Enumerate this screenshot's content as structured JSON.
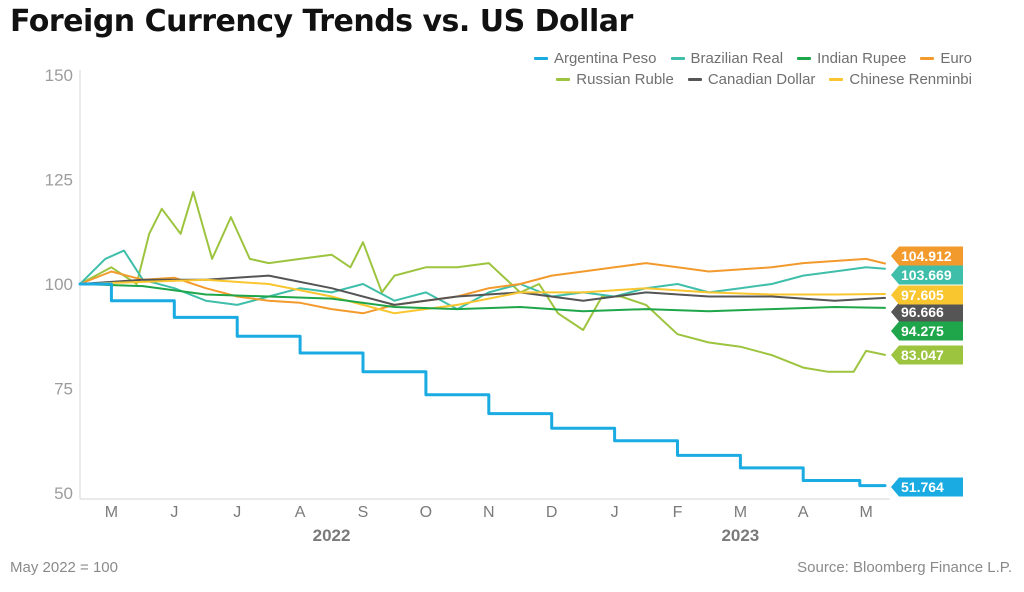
{
  "chart_data": {
    "type": "line",
    "title": "Foreign Currency Trends vs. US Dollar",
    "note": "May 2022 = 100",
    "source": "Source: Bloomberg Finance L.P.",
    "ylim": [
      50,
      150
    ],
    "yticks": [
      50,
      75,
      100,
      125,
      150
    ],
    "x_range": [
      0,
      12.8
    ],
    "month_ticks": [
      {
        "label": "M",
        "x": 0.5
      },
      {
        "label": "J",
        "x": 1.5
      },
      {
        "label": "J",
        "x": 2.5
      },
      {
        "label": "A",
        "x": 3.5
      },
      {
        "label": "S",
        "x": 4.5
      },
      {
        "label": "O",
        "x": 5.5
      },
      {
        "label": "N",
        "x": 6.5
      },
      {
        "label": "D",
        "x": 7.5
      },
      {
        "label": "J",
        "x": 8.5
      },
      {
        "label": "F",
        "x": 9.5
      },
      {
        "label": "M",
        "x": 10.5
      },
      {
        "label": "A",
        "x": 11.5
      },
      {
        "label": "M",
        "x": 12.5
      }
    ],
    "years": [
      {
        "label": "2022",
        "x": 4.0
      },
      {
        "label": "2023",
        "x": 10.5
      }
    ],
    "series": [
      {
        "name": "Argentina Peso",
        "color": "#19ABE2",
        "end_value": "51.764",
        "x": [
          0,
          1,
          2,
          3,
          4,
          5,
          6,
          7,
          8,
          9,
          10,
          11,
          12,
          12.8
        ],
        "values": [
          100,
          96,
          92,
          87.5,
          83.5,
          79,
          73.5,
          69,
          65.5,
          62.5,
          59,
          56,
          53,
          51.764
        ]
      },
      {
        "name": "Brazilian Real",
        "color": "#3FBFAA",
        "end_value": "103.669",
        "x": [
          0,
          0.4,
          0.7,
          1,
          1.5,
          2,
          2.5,
          3,
          3.5,
          4,
          4.5,
          5,
          5.5,
          6,
          6.5,
          7,
          7.5,
          8,
          8.5,
          9,
          9.5,
          10,
          10.5,
          11,
          11.5,
          12,
          12.5,
          12.8
        ],
        "values": [
          100,
          106,
          108,
          101,
          99,
          96,
          95,
          97,
          99,
          98,
          100,
          96,
          98,
          94,
          98,
          100,
          97,
          98,
          97,
          99,
          100,
          98,
          99,
          100,
          102,
          103,
          104,
          103.669
        ]
      },
      {
        "name": "Indian Rupee",
        "color": "#1FA64A",
        "end_value": "94.275",
        "x": [
          0,
          1,
          2,
          3,
          4,
          5,
          6,
          7,
          8,
          9,
          10,
          11,
          12,
          12.8
        ],
        "values": [
          100,
          99.5,
          97.5,
          97,
          96.5,
          94.5,
          94,
          94.5,
          93.5,
          94,
          93.5,
          94,
          94.5,
          94.275
        ]
      },
      {
        "name": "Euro",
        "color": "#F39A2D",
        "end_value": "104.912",
        "x": [
          0,
          0.5,
          1,
          1.5,
          2,
          2.5,
          3,
          3.5,
          4,
          4.5,
          5,
          5.5,
          6,
          6.5,
          7,
          7.5,
          8,
          8.5,
          9,
          9.5,
          10,
          10.5,
          11,
          11.5,
          12,
          12.5,
          12.8
        ],
        "values": [
          100,
          103,
          101,
          101.5,
          99,
          97,
          96,
          95.5,
          94,
          93,
          95,
          96,
          97,
          99,
          100,
          102,
          103,
          104,
          105,
          104,
          103,
          103.5,
          104,
          105,
          105.5,
          106,
          104.912
        ]
      },
      {
        "name": "Russian Ruble",
        "color": "#9CC43F",
        "end_value": "83.047",
        "x": [
          0,
          0.5,
          0.9,
          1.1,
          1.3,
          1.6,
          1.8,
          2.1,
          2.4,
          2.7,
          3,
          3.5,
          4,
          4.3,
          4.5,
          4.8,
          5,
          5.5,
          6,
          6.5,
          7,
          7.3,
          7.6,
          8,
          8.3,
          8.6,
          9,
          9.5,
          10,
          10.5,
          11,
          11.5,
          11.9,
          12.3,
          12.5,
          12.8
        ],
        "values": [
          100,
          104,
          100,
          112,
          118,
          112,
          122,
          106,
          116,
          106,
          105,
          106,
          107,
          104,
          110,
          98,
          102,
          104,
          104,
          105,
          98,
          100,
          93,
          89,
          97,
          97,
          95,
          88,
          86,
          85,
          83,
          80,
          79,
          79,
          84,
          83.047
        ]
      },
      {
        "name": "Canadian Dollar",
        "color": "#555555",
        "end_value": "96.666",
        "x": [
          0,
          1,
          2,
          3,
          4,
          5,
          6,
          7,
          8,
          9,
          10,
          11,
          12,
          12.8
        ],
        "values": [
          100,
          101,
          101,
          102,
          99,
          95,
          97,
          98,
          96,
          98,
          97,
          97,
          96,
          96.666
        ]
      },
      {
        "name": "Chinese Renminbi",
        "color": "#F9C62F",
        "end_value": "97.605",
        "x": [
          0,
          1,
          2,
          3,
          4,
          5,
          6,
          7,
          8,
          9,
          10,
          11,
          12,
          12.8
        ],
        "values": [
          100,
          100.5,
          101,
          100,
          97,
          93,
          95,
          98,
          98,
          99,
          98,
          97.5,
          97.5,
          97.605
        ]
      }
    ]
  }
}
